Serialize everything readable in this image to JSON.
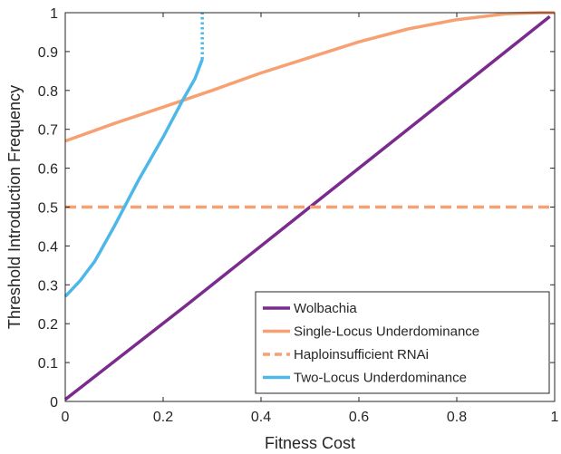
{
  "chart_data": {
    "type": "line",
    "title": "",
    "xlabel": "Fitness Cost",
    "ylabel": "Threshold Introduction Frequency",
    "xlim": [
      0,
      1
    ],
    "ylim": [
      0,
      1
    ],
    "x_ticks": [
      "0",
      "0.2",
      "0.4",
      "0.6",
      "0.8",
      "1"
    ],
    "y_ticks": [
      "0",
      "0.1",
      "0.2",
      "0.3",
      "0.4",
      "0.5",
      "0.6",
      "0.7",
      "0.8",
      "0.9",
      "1"
    ],
    "grid": false,
    "legend_position": "bottom-right",
    "series": [
      {
        "name": "Wolbachia",
        "color": "#7b2a8e",
        "style": "solid",
        "points": [
          [
            0,
            0.005
          ],
          [
            0.25,
            0.25
          ],
          [
            0.5,
            0.5
          ],
          [
            0.75,
            0.75
          ],
          [
            0.99,
            0.99
          ]
        ]
      },
      {
        "name": "Single-Locus Underdominance",
        "color": "#f7a072",
        "style": "solid",
        "points": [
          [
            0,
            0.67
          ],
          [
            0.1,
            0.715
          ],
          [
            0.2,
            0.757
          ],
          [
            0.3,
            0.8
          ],
          [
            0.4,
            0.845
          ],
          [
            0.5,
            0.885
          ],
          [
            0.6,
            0.925
          ],
          [
            0.7,
            0.958
          ],
          [
            0.8,
            0.982
          ],
          [
            0.9,
            0.997
          ],
          [
            0.97,
            1.0
          ],
          [
            1.0,
            1.0
          ]
        ]
      },
      {
        "name": "Haploinsufficient RNAi",
        "color": "#f7a072",
        "style": "dashed",
        "points": [
          [
            0,
            0.5
          ],
          [
            1,
            0.5
          ]
        ]
      },
      {
        "name": "Two-Locus Underdominance",
        "color": "#4db8e8",
        "style": "solid",
        "points": [
          [
            0,
            0.27
          ],
          [
            0.03,
            0.31
          ],
          [
            0.06,
            0.36
          ],
          [
            0.1,
            0.45
          ],
          [
            0.15,
            0.57
          ],
          [
            0.2,
            0.68
          ],
          [
            0.24,
            0.775
          ],
          [
            0.265,
            0.83
          ],
          [
            0.28,
            0.88
          ]
        ]
      },
      {
        "name": "",
        "color": "#4db8e8",
        "style": "dotted",
        "points": [
          [
            0.28,
            0.88
          ],
          [
            0.28,
            1.0
          ]
        ]
      }
    ]
  }
}
